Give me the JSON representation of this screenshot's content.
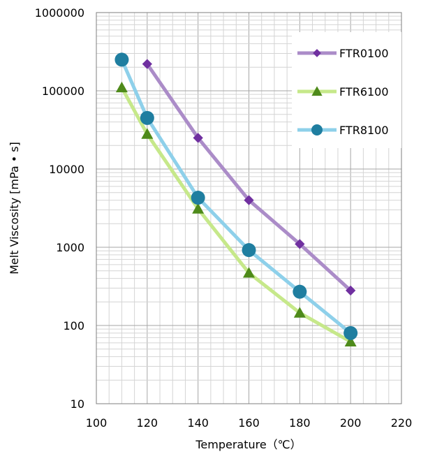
{
  "chart_data": {
    "type": "line",
    "xlabel": "Temperature（℃）",
    "ylabel": "Melt Viscosity [mPa • s]",
    "xlim": [
      100,
      220
    ],
    "ylim": [
      10,
      1000000
    ],
    "yscale": "log",
    "grid": true,
    "legend_position": "top-right",
    "x_ticks": [
      "100",
      "120",
      "140",
      "160",
      "180",
      "200",
      "220"
    ],
    "y_ticks": [
      "10",
      "100",
      "1000",
      "10000",
      "100000",
      "1000000"
    ],
    "series": [
      {
        "name": "FTR0100",
        "marker": "diamond",
        "line_color": "#ab8cc8",
        "marker_color": "#7030a0",
        "x": [
          120,
          140,
          160,
          180,
          200
        ],
        "y": [
          220000,
          25000,
          4000,
          1100,
          280
        ]
      },
      {
        "name": "FTR6100",
        "marker": "triangle",
        "line_color": "#c6e88a",
        "marker_color": "#4e8a1a",
        "x": [
          110,
          120,
          140,
          160,
          180,
          200
        ],
        "y": [
          110000,
          28000,
          3100,
          470,
          145,
          62
        ]
      },
      {
        "name": "FTR8100",
        "marker": "circle",
        "line_color": "#8ed0ea",
        "marker_color": "#1f7ea0",
        "x": [
          110,
          120,
          140,
          160,
          180,
          200
        ],
        "y": [
          250000,
          45000,
          4300,
          920,
          270,
          80
        ]
      }
    ]
  }
}
